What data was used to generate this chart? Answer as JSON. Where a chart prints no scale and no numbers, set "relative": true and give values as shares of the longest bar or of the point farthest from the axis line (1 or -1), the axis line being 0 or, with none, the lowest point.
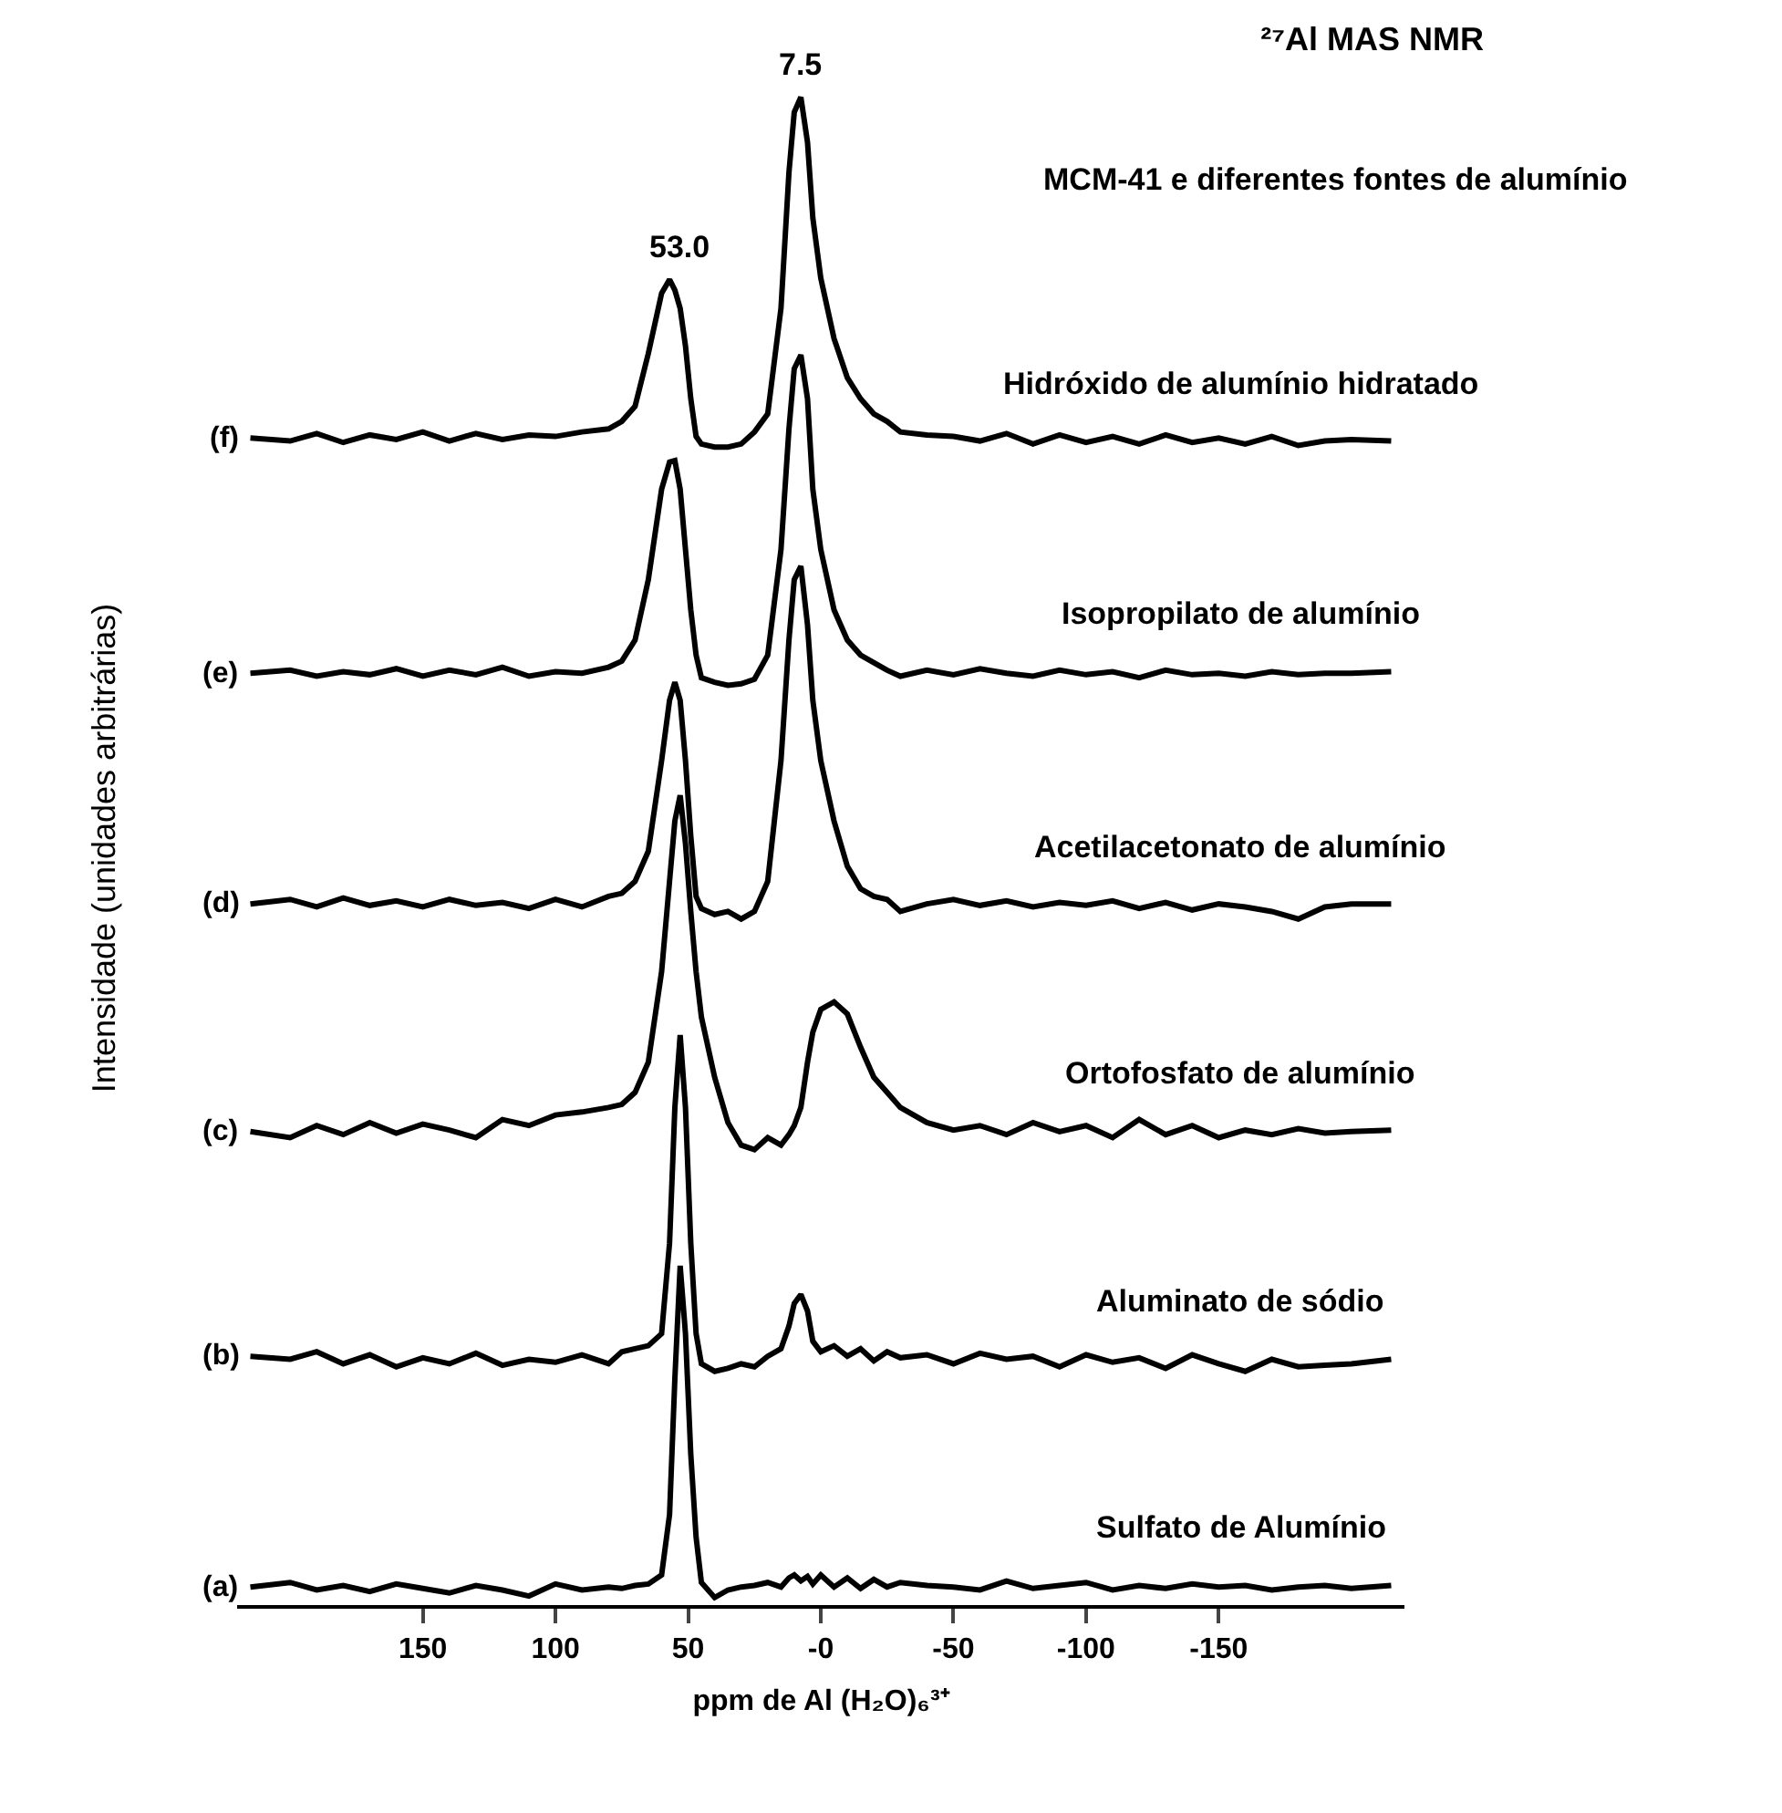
{
  "chart_data": {
    "type": "line",
    "relative": true,
    "title": "²⁷Al MAS NMR",
    "subtitle": "MCM-41 e diferentes fontes de alumínio",
    "xlabel": "ppm de Al (H₂O)₆³⁺",
    "ylabel": "Intensidade (unidades arbitrárias)",
    "xlim": [
      220,
      -220
    ],
    "xticks": [
      150,
      100,
      50,
      {
        "value": 0,
        "label": "-0"
      },
      -50,
      -100,
      -150
    ],
    "grid": false,
    "legend": false,
    "marker": "none",
    "line_style": "solid",
    "tick_labels": "x",
    "x": [
      215,
      200,
      190,
      180,
      170,
      160,
      150,
      140,
      130,
      120,
      110,
      100,
      90,
      80,
      75,
      70,
      65,
      60,
      57,
      55,
      53,
      51,
      49,
      47,
      45,
      40,
      35,
      30,
      25,
      20,
      15,
      12,
      10,
      7.5,
      5,
      3,
      0,
      -5,
      -10,
      -15,
      -20,
      -25,
      -30,
      -40,
      -50,
      -60,
      -70,
      -80,
      -90,
      -100,
      -110,
      -120,
      -130,
      -140,
      -150,
      -160,
      -170,
      -180,
      -190,
      -200,
      -215
    ],
    "series": [
      {
        "name": "(a)",
        "color": "#000000",
        "values": [
          0.012,
          0.015,
          0.01,
          0.013,
          0.009,
          0.014,
          0.011,
          0.008,
          0.013,
          0.01,
          0.006,
          0.014,
          0.01,
          0.012,
          0.011,
          0.013,
          0.014,
          0.02,
          0.06,
          0.15,
          0.225,
          0.18,
          0.1,
          0.045,
          0.015,
          0.005,
          0.01,
          0.012,
          0.013,
          0.015,
          0.012,
          0.018,
          0.02,
          0.016,
          0.019,
          0.014,
          0.02,
          0.012,
          0.018,
          0.011,
          0.017,
          0.012,
          0.015,
          0.013,
          0.012,
          0.01,
          0.016,
          0.011,
          0.013,
          0.015,
          0.01,
          0.013,
          0.011,
          0.014,
          0.012,
          0.013,
          0.01,
          0.012,
          0.013,
          0.011,
          0.013
        ]
      },
      {
        "name": "(b)",
        "color": "#000000",
        "values": [
          0.165,
          0.163,
          0.168,
          0.16,
          0.166,
          0.158,
          0.164,
          0.16,
          0.167,
          0.159,
          0.163,
          0.161,
          0.166,
          0.16,
          0.168,
          0.17,
          0.172,
          0.18,
          0.24,
          0.33,
          0.378,
          0.33,
          0.24,
          0.18,
          0.16,
          0.155,
          0.157,
          0.16,
          0.158,
          0.165,
          0.17,
          0.185,
          0.2,
          0.206,
          0.195,
          0.175,
          0.168,
          0.172,
          0.165,
          0.17,
          0.162,
          0.168,
          0.164,
          0.166,
          0.16,
          0.167,
          0.163,
          0.165,
          0.158,
          0.166,
          0.161,
          0.164,
          0.157,
          0.166,
          0.16,
          0.155,
          0.163,
          0.158,
          0.159,
          0.16,
          0.163
        ]
      },
      {
        "name": "(c)",
        "color": "#000000",
        "values": [
          0.314,
          0.31,
          0.318,
          0.312,
          0.32,
          0.313,
          0.319,
          0.315,
          0.31,
          0.322,
          0.318,
          0.325,
          0.327,
          0.33,
          0.332,
          0.34,
          0.36,
          0.42,
          0.48,
          0.52,
          0.537,
          0.505,
          0.46,
          0.42,
          0.39,
          0.35,
          0.32,
          0.305,
          0.302,
          0.31,
          0.305,
          0.312,
          0.318,
          0.33,
          0.36,
          0.38,
          0.395,
          0.4,
          0.392,
          0.37,
          0.35,
          0.34,
          0.33,
          0.32,
          0.315,
          0.318,
          0.312,
          0.32,
          0.314,
          0.318,
          0.31,
          0.322,
          0.312,
          0.318,
          0.31,
          0.315,
          0.312,
          0.316,
          0.313,
          0.314,
          0.315
        ]
      },
      {
        "name": "(d)",
        "color": "#000000",
        "values": [
          0.465,
          0.468,
          0.463,
          0.469,
          0.464,
          0.467,
          0.463,
          0.468,
          0.464,
          0.466,
          0.462,
          0.468,
          0.463,
          0.47,
          0.472,
          0.48,
          0.5,
          0.56,
          0.6,
          0.612,
          0.6,
          0.56,
          0.51,
          0.47,
          0.462,
          0.458,
          0.46,
          0.455,
          0.46,
          0.48,
          0.56,
          0.64,
          0.68,
          0.689,
          0.65,
          0.6,
          0.56,
          0.52,
          0.49,
          0.475,
          0.47,
          0.468,
          0.46,
          0.465,
          0.468,
          0.464,
          0.467,
          0.463,
          0.466,
          0.464,
          0.467,
          0.462,
          0.466,
          0.461,
          0.465,
          0.463,
          0.46,
          0.455,
          0.463,
          0.465,
          0.465
        ]
      },
      {
        "name": "(e)",
        "color": "#000000",
        "values": [
          0.618,
          0.62,
          0.616,
          0.619,
          0.617,
          0.621,
          0.616,
          0.62,
          0.617,
          0.622,
          0.616,
          0.619,
          0.618,
          0.622,
          0.626,
          0.64,
          0.68,
          0.74,
          0.758,
          0.759,
          0.74,
          0.7,
          0.66,
          0.63,
          0.615,
          0.612,
          0.61,
          0.611,
          0.614,
          0.63,
          0.7,
          0.78,
          0.82,
          0.829,
          0.8,
          0.74,
          0.7,
          0.66,
          0.64,
          0.63,
          0.625,
          0.62,
          0.616,
          0.62,
          0.617,
          0.621,
          0.618,
          0.616,
          0.62,
          0.617,
          0.619,
          0.615,
          0.62,
          0.617,
          0.618,
          0.616,
          0.619,
          0.617,
          0.618,
          0.618,
          0.619
        ]
      },
      {
        "name": "(f)",
        "color": "#000000",
        "values": [
          0.774,
          0.772,
          0.777,
          0.771,
          0.776,
          0.773,
          0.778,
          0.772,
          0.777,
          0.773,
          0.776,
          0.775,
          0.778,
          0.78,
          0.785,
          0.795,
          0.83,
          0.87,
          0.879,
          0.872,
          0.86,
          0.835,
          0.8,
          0.775,
          0.77,
          0.768,
          0.768,
          0.77,
          0.778,
          0.79,
          0.86,
          0.95,
          0.99,
          1.0,
          0.97,
          0.92,
          0.88,
          0.84,
          0.814,
          0.8,
          0.79,
          0.785,
          0.778,
          0.776,
          0.775,
          0.772,
          0.777,
          0.77,
          0.776,
          0.771,
          0.775,
          0.77,
          0.776,
          0.771,
          0.774,
          0.77,
          0.775,
          0.769,
          0.772,
          0.773,
          0.772
        ]
      }
    ],
    "annotations": [
      {
        "text": "53.0",
        "x": 53,
        "y": 0.879
      },
      {
        "text": "7.5",
        "x": 7.5,
        "y": 1.0
      },
      "Sulfato de Alumínio",
      "Aluminato de sódio",
      "Ortofosfato de alumínio",
      "Acetilacetonato de alumínio",
      "Isopropilato de alumínio",
      "Hidróxido de alumínio hidratado"
    ]
  }
}
